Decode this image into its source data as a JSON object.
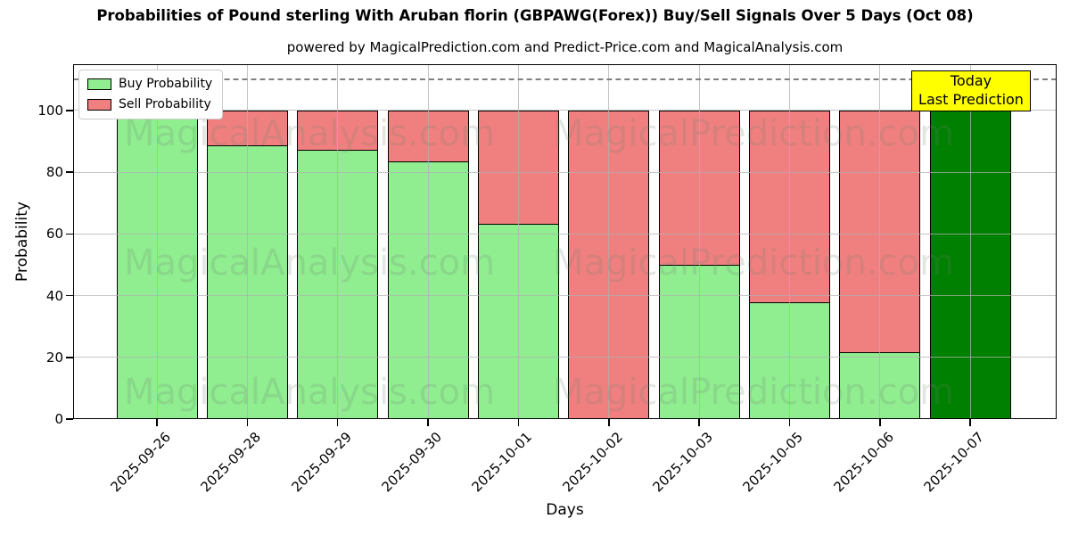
{
  "title": "Probabilities of Pound sterling With Aruban florin (GBPAWG(Forex)) Buy/Sell Signals Over 5 Days (Oct 08)",
  "subtitle": "powered by MagicalPrediction.com and Predict-Price.com and MagicalAnalysis.com",
  "chart_data": {
    "type": "bar",
    "stacked": true,
    "title": "Probabilities of Pound sterling With Aruban florin (GBPAWG(Forex)) Buy/Sell Signals Over 5 Days (Oct 08)",
    "subtitle": "powered by MagicalPrediction.com and Predict-Price.com and MagicalAnalysis.com",
    "xlabel": "Days",
    "ylabel": "Probability",
    "categories": [
      "2025-09-26",
      "2025-09-28",
      "2025-09-29",
      "2025-09-30",
      "2025-10-01",
      "2025-10-02",
      "2025-10-03",
      "2025-10-05",
      "2025-10-06",
      "2025-10-07"
    ],
    "series": [
      {
        "name": "Buy Probability",
        "color": "#90EE90",
        "in_legend": true,
        "values": [
          100,
          88.8,
          87.2,
          83.4,
          63.4,
          0,
          50,
          37.8,
          21.8,
          0
        ]
      },
      {
        "name": "Sell Probability",
        "color": "#F08080",
        "in_legend": true,
        "values": [
          0,
          11.2,
          12.8,
          16.6,
          36.6,
          100,
          50,
          62.2,
          78.2,
          0
        ]
      },
      {
        "name": "Today Last Prediction (Buy)",
        "color": "#008000",
        "in_legend": false,
        "values": [
          0,
          0,
          0,
          0,
          0,
          0,
          0,
          0,
          0,
          100
        ]
      }
    ],
    "ylim": [
      0,
      115
    ],
    "yticks": [
      0,
      20,
      40,
      60,
      80,
      100
    ],
    "grid": true,
    "dashed_line_y": 110,
    "legend_position": "upper-left",
    "legend": [
      {
        "label": "Buy Probability",
        "color": "#90EE90"
      },
      {
        "label": "Sell Probability",
        "color": "#F08080"
      }
    ],
    "annotation": {
      "lines": [
        "Today",
        "Last Prediction"
      ],
      "bg_color": "#FFFF00",
      "border_color": "#000000"
    },
    "watermarks": {
      "left_text": "MagicalAnalysis.com",
      "right_text": "MagicalPrediction.com",
      "rows": 3
    }
  }
}
